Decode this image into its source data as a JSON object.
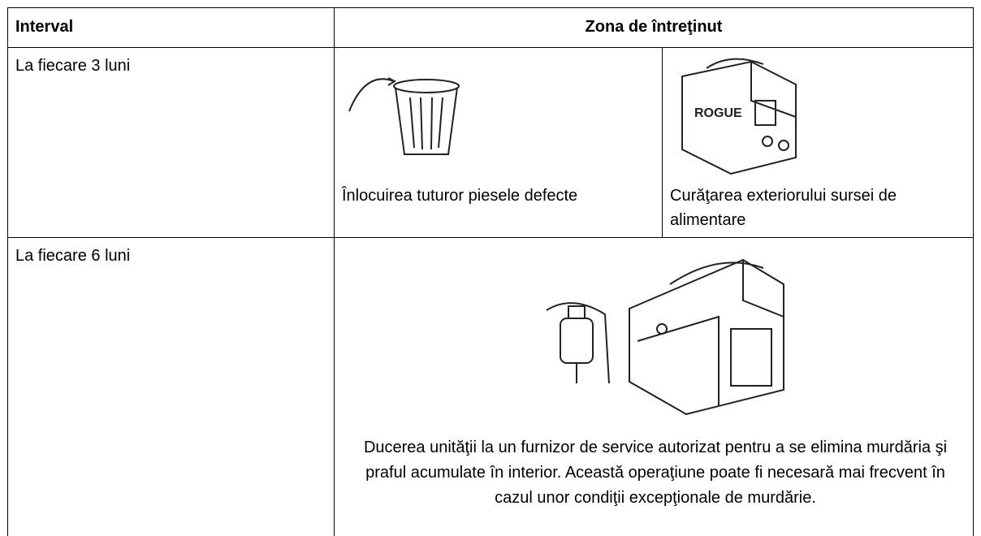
{
  "table": {
    "header": [
      "Interval",
      "Zona de întreţinut"
    ],
    "rows": [
      {
        "interval": "La fiecare 3 luni",
        "items": [
          "Înlocuirea tuturor piesele defecte",
          "Curăţarea exteriorului sursei de alimentare"
        ]
      },
      {
        "interval": "La fiecare 6 luni",
        "items": [
          "Ducerea unităţii la un furnizor de service autorizat pentru a se elimina murdăria şi praful acumulate în interior. Această operaţiune poate fi necesară mai frecvent în cazul unor condiţii excepţionale de murdărie."
        ]
      }
    ]
  }
}
